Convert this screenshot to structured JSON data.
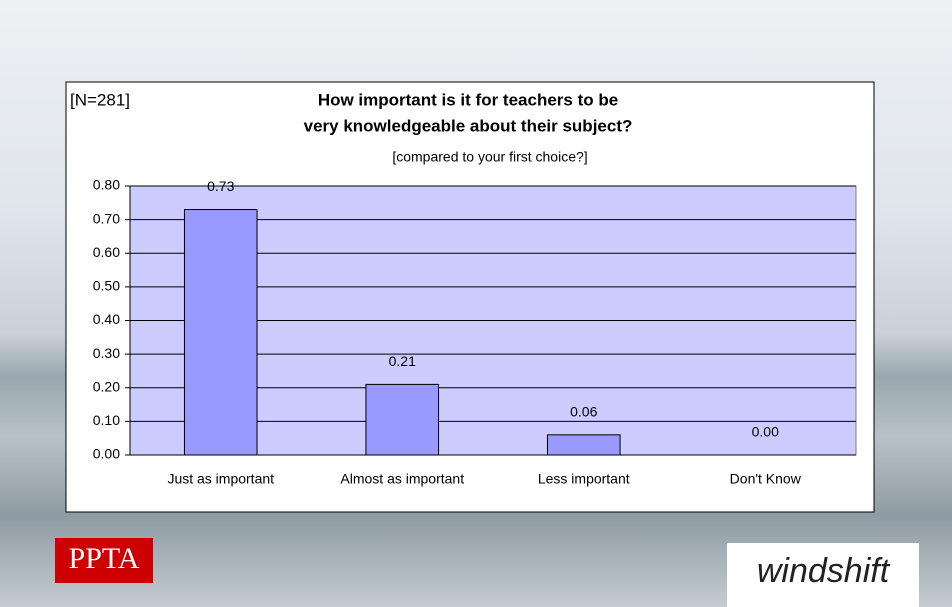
{
  "chart_data": {
    "type": "bar",
    "annotation": "[N=281]",
    "title": [
      "How  important is it for teachers to be",
      "very knowledgeable about their subject?"
    ],
    "subtitle": "[compared to your first choice?]",
    "categories": [
      "Just as important",
      "Almost as important",
      "Less important",
      "Don't Know"
    ],
    "values": [
      0.73,
      0.21,
      0.06,
      0
    ],
    "value_labels": [
      "0.73",
      "0.21",
      "0.06",
      "0.00"
    ],
    "color": "#9999ff",
    "plot_background": "#ccccff",
    "ylim": [
      0,
      0.8
    ],
    "yticks": [
      {
        "value": 0,
        "label": "0.00"
      },
      {
        "value": 0.1,
        "label": "0.10"
      },
      {
        "value": 0.2,
        "label": "0.20"
      },
      {
        "value": 0.3,
        "label": "0.30"
      },
      {
        "value": 0.4,
        "label": "0.40"
      },
      {
        "value": 0.5,
        "label": "0.50"
      },
      {
        "value": 0.6,
        "label": "0.60"
      },
      {
        "value": 0.7,
        "label": "0.70"
      },
      {
        "value": 0.8,
        "label": "0.80"
      }
    ],
    "grid": true
  },
  "branding": {
    "left": "PPTA",
    "right": "windshift"
  }
}
